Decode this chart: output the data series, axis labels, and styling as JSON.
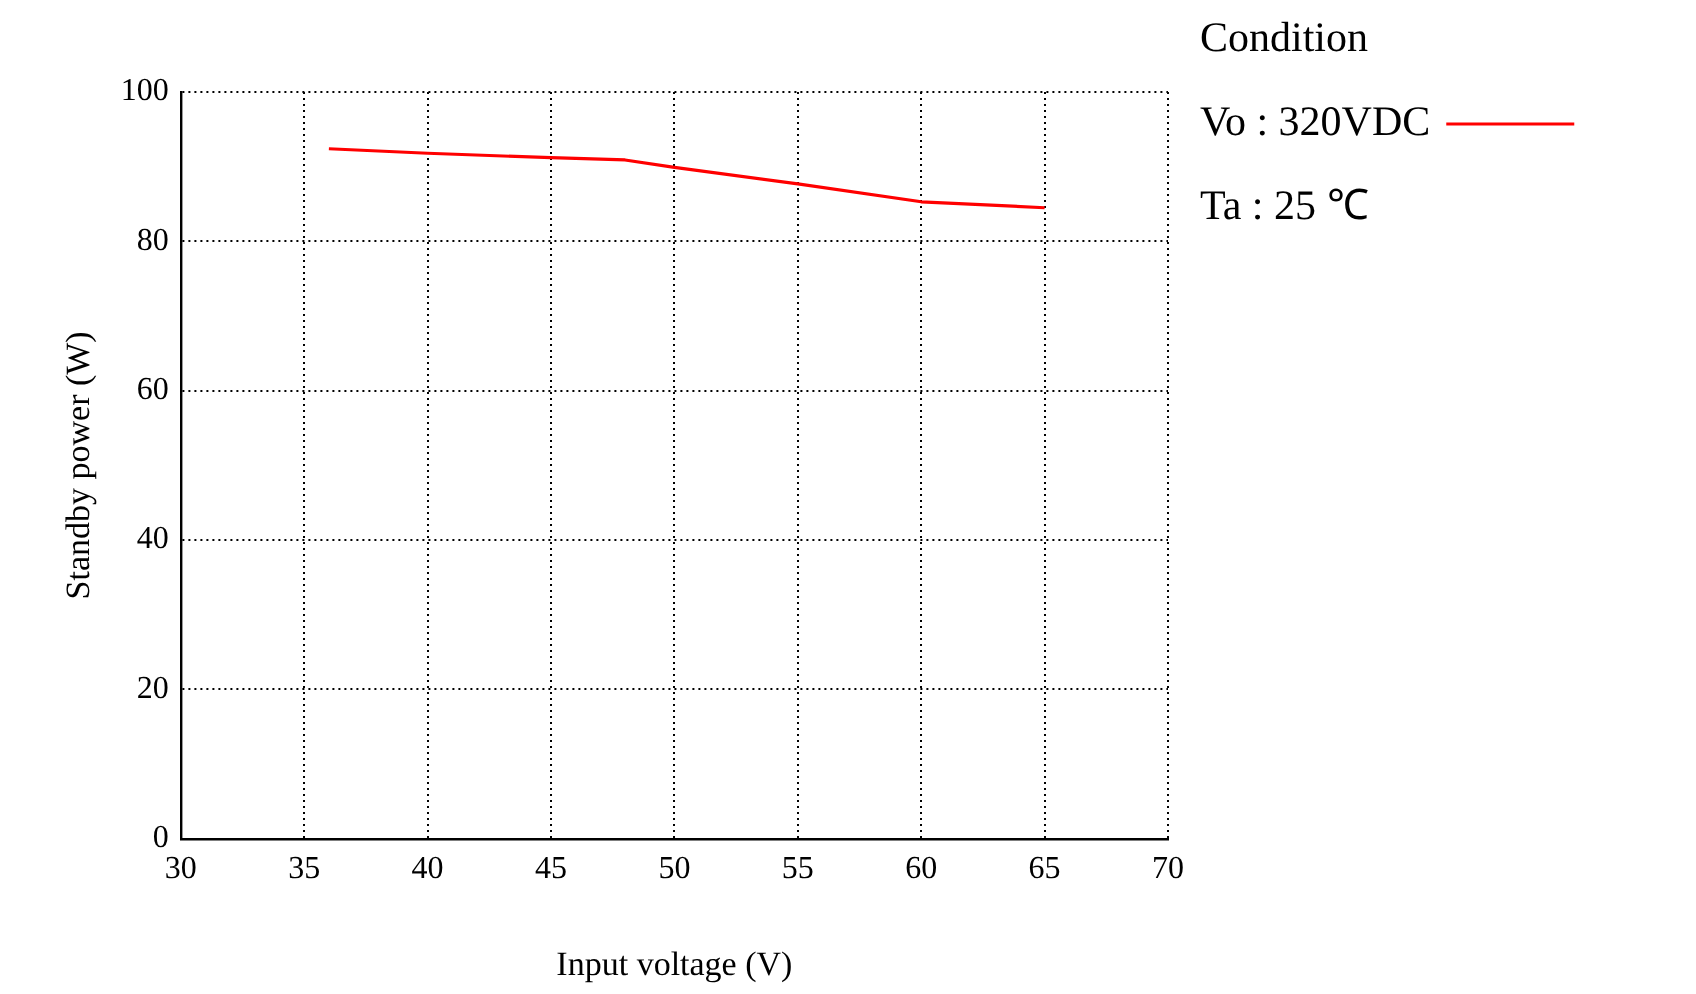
{
  "chart_data": {
    "type": "line",
    "xlabel": "Input voltage (V)",
    "ylabel": "Standby power (W)",
    "legend_title": "Condition",
    "series": [
      {
        "name": "Vo : 320VDC",
        "color": "#ff0000",
        "x": [
          36,
          40,
          45,
          48,
          50,
          55,
          60,
          65
        ],
        "values": [
          92.4,
          91.8,
          91.2,
          90.9,
          89.9,
          87.7,
          85.3,
          84.5
        ]
      }
    ],
    "annotations": [
      "Ta : 25 ℃"
    ],
    "xlim": [
      30,
      70
    ],
    "xticks": [
      30,
      35,
      40,
      45,
      50,
      55,
      60,
      65,
      70
    ],
    "ylim": [
      0,
      100
    ],
    "yticks": [
      0,
      20,
      40,
      60,
      80,
      100
    ],
    "grid": true,
    "legend": "top right",
    "marker": "none",
    "line_style": "solid"
  }
}
